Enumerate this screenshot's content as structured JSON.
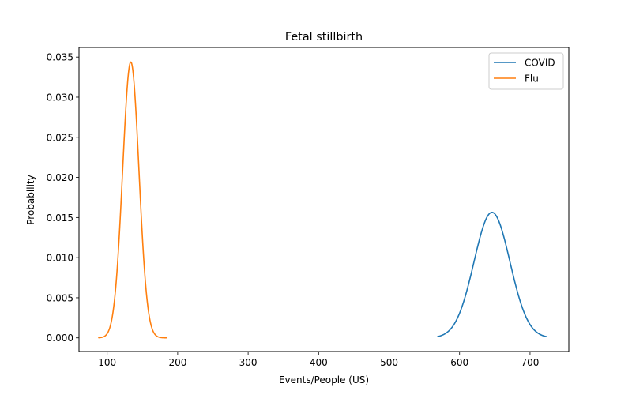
{
  "chart_data": {
    "type": "line",
    "title": "Fetal stillbirth",
    "xlabel": "Events/People (US)",
    "ylabel": "Probability",
    "xlim": [
      60,
      755
    ],
    "ylim": [
      -0.0017,
      0.0362
    ],
    "xticks": [
      100,
      200,
      300,
      400,
      500,
      600,
      700
    ],
    "yticks": [
      0.0,
      0.005,
      0.01,
      0.015,
      0.02,
      0.025,
      0.03,
      0.035
    ],
    "ytick_labels": [
      "0.000",
      "0.005",
      "0.010",
      "0.015",
      "0.020",
      "0.025",
      "0.030",
      "0.035"
    ],
    "grid": false,
    "legend": "top-right",
    "series": [
      {
        "name": "COVID",
        "color": "#1f77b4",
        "distribution": "normal",
        "mean": 646,
        "std": 25.5,
        "x_range": [
          569,
          724
        ]
      },
      {
        "name": "Flu",
        "color": "#ff7f0e",
        "distribution": "normal",
        "mean": 133.5,
        "std": 11.6,
        "x_range": [
          88,
          184
        ]
      }
    ]
  }
}
